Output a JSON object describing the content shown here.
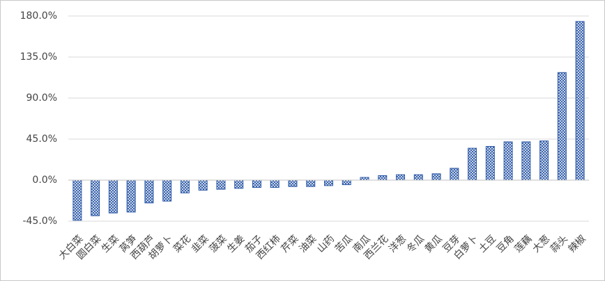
{
  "chart_data": {
    "type": "bar",
    "categories": [
      "大白菜",
      "圆白菜",
      "生菜",
      "莴笋",
      "西葫芦",
      "胡萝卜",
      "菜花",
      "韭菜",
      "菠菜",
      "生姜",
      "茄子",
      "西红柿",
      "芹菜",
      "油菜",
      "山药",
      "苦瓜",
      "南瓜",
      "西兰花",
      "洋葱",
      "冬瓜",
      "黄瓜",
      "豆芽",
      "白萝卜",
      "土豆",
      "豆角",
      "莲藕",
      "大葱",
      "蒜头",
      "辣椒"
    ],
    "values": [
      -44,
      -39,
      -36,
      -35,
      -25,
      -23,
      -14,
      -11,
      -10,
      -9,
      -8,
      -8,
      -7,
      -7,
      -6,
      -5,
      3,
      5,
      6,
      6,
      7,
      13,
      35,
      37,
      42,
      42,
      43,
      118,
      174
    ],
    "color": "#2e5aa8",
    "ylim": [
      -45,
      180
    ],
    "yticks": [
      {
        "value": -45,
        "label": "-45.0%"
      },
      {
        "value": 0,
        "label": "0.0%"
      },
      {
        "value": 45,
        "label": "45.0%"
      },
      {
        "value": 90,
        "label": "90.0%"
      },
      {
        "value": 135,
        "label": "135.0%"
      },
      {
        "value": 180,
        "label": "180.0%"
      }
    ],
    "grid": true
  }
}
